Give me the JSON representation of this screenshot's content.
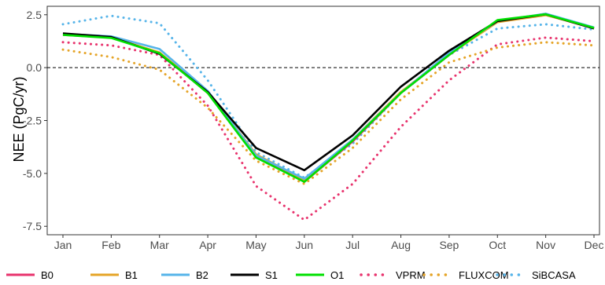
{
  "chart_data": {
    "type": "line",
    "title": "",
    "xlabel": "",
    "ylabel": "NEE (PgC/yr)",
    "categories": [
      "Jan",
      "Feb",
      "Mar",
      "Apr",
      "May",
      "Jun",
      "Jul",
      "Aug",
      "Sep",
      "Oct",
      "Nov",
      "Dec"
    ],
    "ylim": [
      -7.9,
      2.9
    ],
    "yticks": [
      2.5,
      0.0,
      -2.5,
      -5.0,
      -7.5
    ],
    "ytick_labels": [
      "2.5",
      "0.0",
      "-2.5",
      "-5.0",
      "-7.5"
    ],
    "grid": false,
    "reference_line": {
      "y": 0,
      "style": "dashed",
      "color": "#000000"
    },
    "legend_position": "bottom",
    "series": [
      {
        "name": "B0",
        "color": "#E8336D",
        "style": "solid",
        "values": [
          1.55,
          1.42,
          0.7,
          -1.2,
          -4.2,
          -5.4,
          -3.5,
          -1.2,
          0.6,
          2.2,
          2.5,
          1.85
        ]
      },
      {
        "name": "B1",
        "color": "#E5A427",
        "style": "solid",
        "values": [
          1.58,
          1.43,
          0.72,
          -1.15,
          -4.1,
          -5.3,
          -3.4,
          -1.15,
          0.62,
          2.15,
          2.48,
          1.88
        ]
      },
      {
        "name": "B2",
        "color": "#56B4E9",
        "style": "solid",
        "values": [
          1.6,
          1.48,
          0.88,
          -1.1,
          -4.15,
          -5.25,
          -3.4,
          -1.2,
          0.7,
          2.2,
          2.55,
          1.9
        ]
      },
      {
        "name": "S1",
        "color": "#000000",
        "style": "solid",
        "values": [
          1.62,
          1.45,
          0.65,
          -1.15,
          -3.8,
          -4.85,
          -3.2,
          -0.9,
          0.8,
          2.2,
          2.52,
          1.85
        ]
      },
      {
        "name": "O1",
        "color": "#00E000",
        "style": "solid",
        "values": [
          1.55,
          1.4,
          0.68,
          -1.2,
          -4.25,
          -5.4,
          -3.45,
          -1.2,
          0.6,
          2.25,
          2.52,
          1.88
        ]
      },
      {
        "name": "VPRM",
        "color": "#E8336D",
        "style": "dotted",
        "values": [
          1.2,
          1.05,
          0.6,
          -1.8,
          -5.6,
          -7.2,
          -5.5,
          -2.8,
          -0.6,
          1.1,
          1.42,
          1.25
        ]
      },
      {
        "name": "FLUXCOM",
        "color": "#E5A427",
        "style": "dotted",
        "values": [
          0.85,
          0.5,
          -0.1,
          -1.9,
          -4.4,
          -5.5,
          -3.8,
          -1.5,
          0.25,
          0.95,
          1.2,
          1.05
        ]
      },
      {
        "name": "SiBCASA",
        "color": "#56B4E9",
        "style": "dotted",
        "values": [
          2.05,
          2.45,
          2.1,
          -0.6,
          -4.0,
          -5.2,
          -3.6,
          -1.2,
          0.6,
          1.85,
          2.05,
          1.8
        ]
      }
    ]
  }
}
